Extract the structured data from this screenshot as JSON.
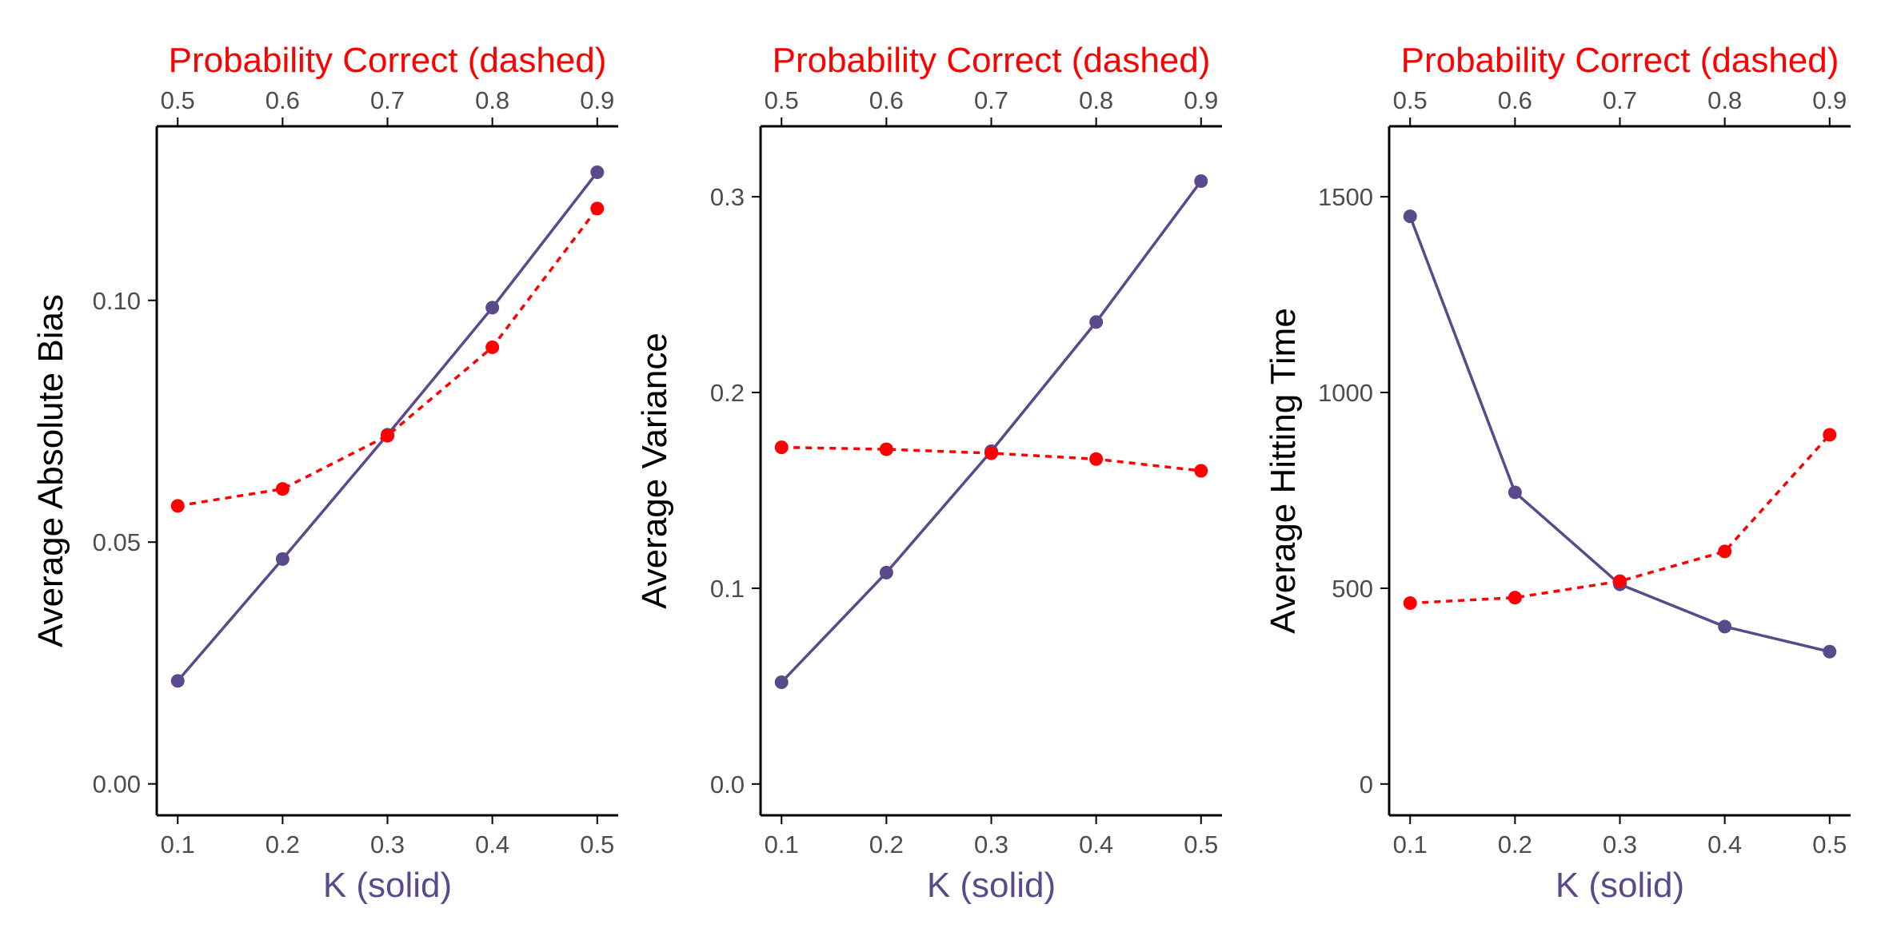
{
  "colors": {
    "solid_series": "#5b4a8b",
    "dashed_series": "#ff0000",
    "axis": "#000000",
    "tick_text": "#4d4d4d"
  },
  "chart_data": [
    {
      "type": "line",
      "xlabel": "K (solid)",
      "x2label": "Probability Correct (dashed)",
      "ylabel": "Average Absolute Bias",
      "xlim": [
        0.08,
        0.52
      ],
      "x2lim": [
        0.48,
        0.92
      ],
      "ylim": [
        -0.0065,
        0.136
      ],
      "x_ticks": [
        "0.1",
        "0.2",
        "0.3",
        "0.4",
        "0.5"
      ],
      "x2_ticks": [
        "0.5",
        "0.6",
        "0.7",
        "0.8",
        "0.9"
      ],
      "y_ticks": [
        "0.00",
        "0.05",
        "0.10"
      ],
      "grid": false,
      "series": [
        {
          "style": "solid",
          "axis": "bottom",
          "x": [
            0.1,
            0.2,
            0.3,
            0.4,
            0.5
          ],
          "y": [
            0.0213,
            0.0465,
            0.0722,
            0.0985,
            0.1265
          ]
        },
        {
          "style": "dashed",
          "axis": "top",
          "x": [
            0.5,
            0.6,
            0.7,
            0.8,
            0.9
          ],
          "y": [
            0.0575,
            0.061,
            0.072,
            0.0903,
            0.119
          ]
        }
      ]
    },
    {
      "type": "line",
      "xlabel": "K (solid)",
      "x2label": "Probability Correct (dashed)",
      "ylabel": "Average Variance",
      "xlim": [
        0.08,
        0.52
      ],
      "x2lim": [
        0.48,
        0.92
      ],
      "ylim": [
        -0.016,
        0.336
      ],
      "x_ticks": [
        "0.1",
        "0.2",
        "0.3",
        "0.4",
        "0.5"
      ],
      "x2_ticks": [
        "0.5",
        "0.6",
        "0.7",
        "0.8",
        "0.9"
      ],
      "y_ticks": [
        "0.0",
        "0.1",
        "0.2",
        "0.3"
      ],
      "grid": false,
      "series": [
        {
          "style": "solid",
          "axis": "bottom",
          "x": [
            0.1,
            0.2,
            0.3,
            0.4,
            0.5
          ],
          "y": [
            0.052,
            0.108,
            0.17,
            0.236,
            0.308
          ]
        },
        {
          "style": "dashed",
          "axis": "top",
          "x": [
            0.5,
            0.6,
            0.7,
            0.8,
            0.9
          ],
          "y": [
            0.172,
            0.171,
            0.169,
            0.166,
            0.16
          ]
        }
      ]
    },
    {
      "type": "line",
      "xlabel": "K (solid)",
      "x2label": "Probability Correct (dashed)",
      "ylabel": "Average Hitting Time",
      "xlim": [
        0.08,
        0.52
      ],
      "x2lim": [
        0.48,
        0.92
      ],
      "ylim": [
        -80,
        1680
      ],
      "x_ticks": [
        "0.1",
        "0.2",
        "0.3",
        "0.4",
        "0.5"
      ],
      "x2_ticks": [
        "0.5",
        "0.6",
        "0.7",
        "0.8",
        "0.9"
      ],
      "y_ticks": [
        "0",
        "500",
        "1000",
        "1500"
      ],
      "grid": false,
      "series": [
        {
          "style": "solid",
          "axis": "bottom",
          "x": [
            0.1,
            0.2,
            0.3,
            0.4,
            0.5
          ],
          "y": [
            1450,
            745,
            510,
            402,
            338
          ]
        },
        {
          "style": "dashed",
          "axis": "top",
          "x": [
            0.5,
            0.6,
            0.7,
            0.8,
            0.9
          ],
          "y": [
            462,
            476,
            518,
            594,
            892
          ]
        }
      ]
    }
  ]
}
